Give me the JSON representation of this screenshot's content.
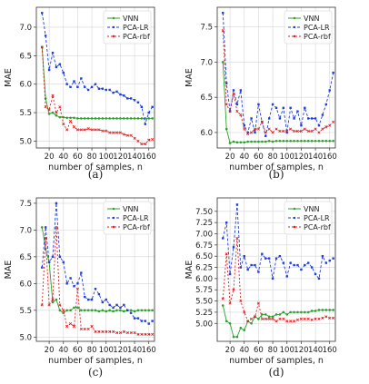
{
  "colors": {
    "VNN": "#2ca02c",
    "PCA-LR": "#1f3fdd",
    "PCA-rbf": "#e41a1c"
  },
  "chart_data": [
    {
      "type": "line",
      "caption": "(a)",
      "xlabel": "number of samples, n",
      "ylabel": "MAE",
      "xlim": [
        2,
        168
      ],
      "ylim": [
        4.88,
        7.35
      ],
      "xticks": [
        20,
        40,
        60,
        80,
        100,
        120,
        140,
        160
      ],
      "yticks": [
        5.0,
        5.5,
        6.0,
        6.5,
        7.0
      ],
      "ytick_labels": [
        "5.0",
        "5.5",
        "6.0",
        "6.5",
        "7.0"
      ],
      "legend": "top-right",
      "x": [
        10,
        15,
        20,
        25,
        30,
        35,
        40,
        45,
        50,
        55,
        60,
        65,
        70,
        75,
        80,
        85,
        90,
        95,
        100,
        105,
        110,
        115,
        120,
        125,
        130,
        135,
        140,
        145,
        150,
        155,
        160,
        165
      ],
      "series": [
        {
          "name": "VNN",
          "values": [
            6.65,
            5.75,
            5.48,
            5.5,
            5.45,
            5.42,
            5.42,
            5.41,
            5.41,
            5.41,
            5.4,
            5.4,
            5.4,
            5.4,
            5.4,
            5.4,
            5.4,
            5.4,
            5.4,
            5.4,
            5.4,
            5.4,
            5.4,
            5.4,
            5.4,
            5.4,
            5.4,
            5.4,
            5.4,
            5.4,
            5.4,
            5.4
          ]
        },
        {
          "name": "PCA-LR",
          "values": [
            7.25,
            6.85,
            6.25,
            6.55,
            6.3,
            6.35,
            6.2,
            6.0,
            5.95,
            6.05,
            5.95,
            6.1,
            5.95,
            5.9,
            5.95,
            6.0,
            5.92,
            5.92,
            5.9,
            5.9,
            5.85,
            5.87,
            5.82,
            5.8,
            5.75,
            5.75,
            5.72,
            5.68,
            5.6,
            5.3,
            5.5,
            5.6
          ]
        },
        {
          "name": "PCA-rbf",
          "values": [
            6.65,
            5.6,
            5.55,
            5.8,
            5.5,
            5.6,
            5.3,
            5.2,
            5.35,
            5.25,
            5.2,
            5.2,
            5.2,
            5.22,
            5.2,
            5.2,
            5.2,
            5.18,
            5.18,
            5.15,
            5.15,
            5.15,
            5.15,
            5.12,
            5.1,
            5.1,
            5.05,
            5.0,
            4.95,
            4.95,
            5.02,
            5.03
          ]
        }
      ]
    },
    {
      "type": "line",
      "caption": "(b)",
      "xlabel": "number of samples, n",
      "ylabel": "MAE",
      "xlim": [
        2,
        168
      ],
      "ylim": [
        5.78,
        7.78
      ],
      "xticks": [
        20,
        40,
        60,
        80,
        100,
        120,
        140,
        160
      ],
      "yticks": [
        6.0,
        6.5,
        7.0,
        7.5
      ],
      "ytick_labels": [
        "6.0",
        "6.5",
        "7.0",
        "7.5"
      ],
      "legend": "top-right",
      "x": [
        10,
        15,
        20,
        25,
        30,
        35,
        40,
        45,
        50,
        55,
        60,
        65,
        70,
        75,
        80,
        85,
        90,
        95,
        100,
        105,
        110,
        115,
        120,
        125,
        130,
        135,
        140,
        145,
        150,
        155,
        160,
        165
      ],
      "series": [
        {
          "name": "VNN",
          "values": [
            7.0,
            6.05,
            5.85,
            5.87,
            5.86,
            5.86,
            5.86,
            5.87,
            5.87,
            5.87,
            5.87,
            5.87,
            5.87,
            5.88,
            5.87,
            5.88,
            5.88,
            5.88,
            5.88,
            5.88,
            5.88,
            5.88,
            5.88,
            5.88,
            5.88,
            5.88,
            5.88,
            5.88,
            5.88,
            5.88,
            5.88,
            5.88
          ]
        },
        {
          "name": "PCA-LR",
          "values": [
            7.7,
            6.7,
            6.3,
            6.6,
            6.4,
            6.6,
            6.1,
            6.0,
            6.2,
            6.0,
            6.4,
            6.15,
            5.95,
            6.2,
            6.4,
            6.35,
            6.2,
            6.35,
            6.0,
            6.35,
            6.2,
            6.3,
            6.1,
            6.35,
            6.2,
            6.2,
            6.2,
            6.1,
            6.25,
            6.4,
            6.6,
            6.85
          ]
        },
        {
          "name": "PCA-rbf",
          "values": [
            7.45,
            6.4,
            6.3,
            6.55,
            6.3,
            6.25,
            6.05,
            5.98,
            6.0,
            6.05,
            6.05,
            6.15,
            6.0,
            6.05,
            6.0,
            6.05,
            6.02,
            6.02,
            6.02,
            6.05,
            6.02,
            6.02,
            6.02,
            6.05,
            6.02,
            6.02,
            6.05,
            6.0,
            6.05,
            6.08,
            6.1,
            6.15
          ]
        }
      ]
    },
    {
      "type": "line",
      "caption": "(c)",
      "xlabel": "number of samples, n",
      "ylabel": "MAE",
      "xlim": [
        2,
        168
      ],
      "ylim": [
        4.92,
        7.6
      ],
      "xticks": [
        20,
        40,
        60,
        80,
        100,
        120,
        140,
        160
      ],
      "yticks": [
        5.0,
        5.5,
        6.0,
        6.5,
        7.0,
        7.5
      ],
      "ytick_labels": [
        "5.0",
        "5.5",
        "6.0",
        "6.5",
        "7.0",
        "7.5"
      ],
      "legend": "top-right",
      "x": [
        10,
        15,
        20,
        25,
        30,
        35,
        40,
        45,
        50,
        55,
        60,
        65,
        70,
        75,
        80,
        85,
        90,
        95,
        100,
        105,
        110,
        115,
        120,
        125,
        130,
        135,
        140,
        145,
        150,
        155,
        160,
        165
      ],
      "series": [
        {
          "name": "VNN",
          "values": [
            7.05,
            6.65,
            6.4,
            5.65,
            5.7,
            5.5,
            5.45,
            5.5,
            5.5,
            5.55,
            5.55,
            5.5,
            5.5,
            5.5,
            5.5,
            5.5,
            5.48,
            5.5,
            5.48,
            5.5,
            5.48,
            5.5,
            5.5,
            5.48,
            5.5,
            5.5,
            5.48,
            5.5,
            5.5,
            5.5,
            5.5,
            5.5
          ]
        },
        {
          "name": "PCA-LR",
          "values": [
            6.3,
            7.05,
            6.4,
            6.5,
            7.5,
            6.5,
            6.4,
            6.0,
            6.1,
            5.95,
            6.0,
            6.2,
            5.75,
            5.7,
            5.7,
            5.9,
            5.8,
            5.65,
            5.7,
            5.6,
            5.55,
            5.6,
            5.55,
            5.6,
            5.5,
            5.45,
            5.35,
            5.35,
            5.3,
            5.3,
            5.25,
            5.3
          ]
        },
        {
          "name": "PCA-rbf",
          "values": [
            5.6,
            6.85,
            5.6,
            5.7,
            7.05,
            5.6,
            5.5,
            5.2,
            5.25,
            5.2,
            5.9,
            5.15,
            5.15,
            5.15,
            5.2,
            5.1,
            5.1,
            5.1,
            5.1,
            5.1,
            5.1,
            5.08,
            5.08,
            5.1,
            5.08,
            5.08,
            5.08,
            5.05,
            5.05,
            5.05,
            5.05,
            5.05
          ]
        }
      ]
    },
    {
      "type": "line",
      "caption": "(d)",
      "xlabel": "number of samples, n",
      "ylabel": "MAE",
      "xlim": [
        2,
        168
      ],
      "ylim": [
        4.6,
        7.8
      ],
      "xticks": [
        20,
        40,
        60,
        80,
        100,
        120,
        140,
        160
      ],
      "yticks": [
        5.0,
        5.5,
        6.0,
        6.5,
        7.0,
        7.5
      ],
      "ytick_labels": [
        "5.00",
        "5.25",
        "5.50",
        "5.75",
        "6.00",
        "6.25",
        "6.50",
        "6.75",
        "7.00",
        "7.25",
        "7.50"
      ],
      "ytick_values": [
        5.0,
        5.25,
        5.5,
        5.75,
        6.0,
        6.25,
        6.5,
        6.75,
        7.0,
        7.25,
        7.5
      ],
      "ytick_visible": [
        "",
        "",
        "",
        "",
        "",
        "",
        "",
        "",
        "",
        "",
        ""
      ],
      "legend": "top-right",
      "x": [
        10,
        15,
        20,
        25,
        30,
        35,
        40,
        45,
        50,
        55,
        60,
        65,
        70,
        75,
        80,
        85,
        90,
        95,
        100,
        105,
        110,
        115,
        120,
        125,
        130,
        135,
        140,
        145,
        150,
        155,
        160,
        165
      ],
      "series": [
        {
          "name": "VNN",
          "values": [
            5.4,
            5.05,
            5.0,
            4.7,
            4.7,
            4.9,
            4.85,
            5.05,
            5.0,
            5.15,
            5.1,
            5.2,
            5.2,
            5.15,
            5.15,
            5.2,
            5.2,
            5.25,
            5.2,
            5.25,
            5.25,
            5.25,
            5.25,
            5.25,
            5.25,
            5.28,
            5.28,
            5.3,
            5.3,
            5.3,
            5.3,
            5.3
          ]
        },
        {
          "name": "PCA-LR",
          "values": [
            6.9,
            7.25,
            6.1,
            6.7,
            7.65,
            6.25,
            6.5,
            6.2,
            6.3,
            6.3,
            6.15,
            6.55,
            6.45,
            6.45,
            6.0,
            6.45,
            6.5,
            6.35,
            6.05,
            6.35,
            6.3,
            6.3,
            6.2,
            6.3,
            6.35,
            6.25,
            6.1,
            6.0,
            6.5,
            6.35,
            6.4,
            6.45
          ]
        },
        {
          "name": "PCA-rbf",
          "values": [
            5.55,
            6.55,
            5.45,
            5.75,
            6.9,
            5.5,
            5.25,
            5.05,
            5.1,
            5.15,
            5.45,
            5.1,
            5.1,
            5.1,
            5.1,
            5.05,
            5.1,
            5.1,
            5.05,
            5.05,
            5.05,
            5.08,
            5.1,
            5.1,
            5.1,
            5.08,
            5.1,
            5.1,
            5.12,
            5.15,
            5.12,
            5.12
          ]
        }
      ]
    }
  ]
}
